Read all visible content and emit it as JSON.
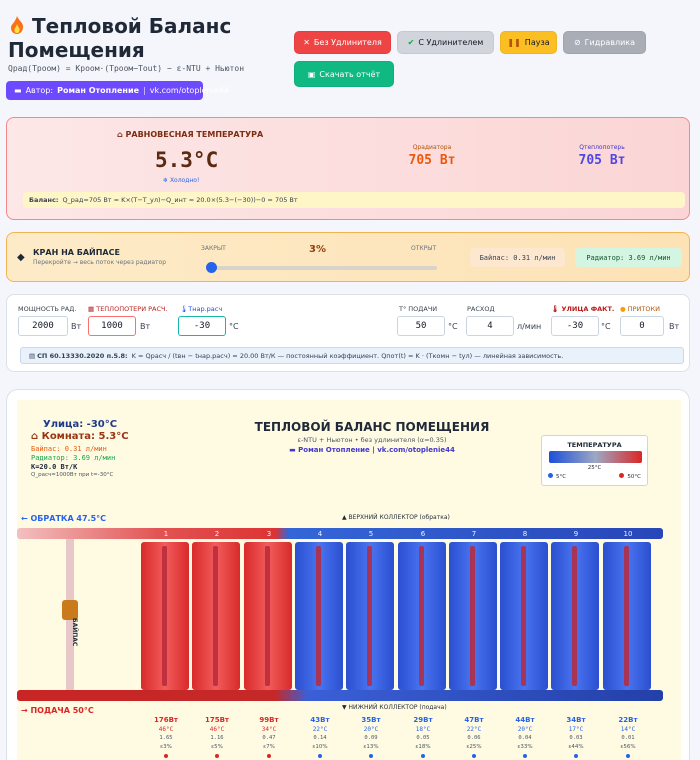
{
  "header": {
    "title": "Тепловой Баланс Помещения",
    "formula": "Qрад(Tроом) = Kроом·(Tроом−Tout) − ε-NTU + Ньютон",
    "author_label": "Автор:",
    "author_name": "Роман Отопление",
    "author_link": "vk.com/otoplenie44"
  },
  "toolbar": {
    "no_extension": "Без Удлинителя",
    "with_extension": "С Удлинителем",
    "pause": "Пауза",
    "hydraulics": "Гидравлика",
    "download_report": "Скачать отчёт"
  },
  "equilibrium": {
    "label": "РАВНОВЕСНАЯ ТЕМПЕРАТУРА",
    "temp": "5.3°C",
    "status": "Холодно!",
    "q_rad_label": "Qрадиатора",
    "q_rad_value": "705 Вт",
    "q_heatloss_label": "Qтеплопотерь",
    "q_heatloss_value": "705 Вт",
    "balance_bold": "Баланс:",
    "balance_text": "Q_рад=705 Вт = K×(T−T_ул)−Q_инт = 20.0×(5.3−(−30))−0 = 705 Вт"
  },
  "valve": {
    "title": "КРАН НА БАЙПАСЕ",
    "subtitle": "Перекройте → весь поток через радиатор",
    "closed": "ЗАКРЫТ",
    "open": "ОТКРЫТ",
    "percent": "3%",
    "percent_value": 3,
    "bypass_flow": "Байпас: 0.31 л/мин",
    "radiator_flow": "Радиатор: 3.69 л/мин"
  },
  "inputs": {
    "power_label": "МОЩНОСТЬ РАД.",
    "power_value": "2000",
    "power_unit": "Вт",
    "heatloss_label": "ТЕПЛОПОТЕРИ РАСЧ.",
    "heatloss_value": "1000",
    "heatloss_unit": "Вт",
    "t_design_label": "Tнар.расч",
    "t_design_value": "-30",
    "t_design_unit": "°C",
    "t_supply_label": "T° ПОДАЧИ",
    "t_supply_value": "50",
    "t_supply_unit": "°C",
    "flow_label": "РАСХОД",
    "flow_value": "4",
    "flow_unit": "л/мин",
    "street_fact_label": "УЛИЦА ФАКТ.",
    "street_fact_value": "-30",
    "street_fact_unit": "°C",
    "inflow_label": "ПРИТОКИ",
    "inflow_value": "0",
    "inflow_unit": "Вт",
    "note_bold": "СП 60.13330.2020 п.5.8:",
    "note_text": "K = Qрасч / (tвн − tнар.расч) = 20.00 Вт/К — постоянный коэффициент. Qпот(t) = K · (Tкомн − tул) — линейная зависимость."
  },
  "scheme": {
    "street": "Улица: -30°C",
    "room": "Комната: 5.3°C",
    "bypass": "Байпас: 0.31 л/мин",
    "radiator": "Радиатор: 3.69 л/мин",
    "k": "K=20.0 Вт/К",
    "calc": "Q_расч=1000Вт при t=-30°C",
    "title": "ТЕПЛОВОЙ БАЛАНС ПОМЕЩЕНИЯ",
    "subtitle": "ε-NTU + Ньютон • без удлинителя (α=0.35)",
    "author": "Роман Отопление | vk.com/otoplenie44",
    "legend_title": "ТЕМПЕРАТУРА",
    "legend_mid": "25°C",
    "legend_min": "5°C",
    "legend_max": "50°C",
    "return_label": "← ОБРАТКА 47.5°C",
    "supply_label": "→ ПОДАЧА 50°C",
    "top_collector": "▲ ВЕРХНИЙ КОЛЛЕКТОР (обратка)",
    "bottom_collector": "▼ НИЖНИЙ КОЛЛЕКТОР (подача)",
    "bypass_vertical": "БАЙПАС",
    "colors": {
      "hot": "#d92a2a",
      "cold": "#2a4fd0",
      "mid": "#9ca8c4"
    },
    "sections": [
      {
        "num": "1",
        "power": "176Вт",
        "temp": "46°C",
        "delta": "1.65",
        "eff": "ε3%",
        "hot": true
      },
      {
        "num": "2",
        "power": "175Вт",
        "temp": "46°C",
        "delta": "1.16",
        "eff": "ε5%",
        "hot": true
      },
      {
        "num": "3",
        "power": "99Вт",
        "temp": "34°C",
        "delta": "0.47",
        "eff": "ε7%",
        "hot": true
      },
      {
        "num": "4",
        "power": "43Вт",
        "temp": "22°C",
        "delta": "0.14",
        "eff": "ε10%",
        "hot": false
      },
      {
        "num": "5",
        "power": "35Вт",
        "temp": "20°C",
        "delta": "0.09",
        "eff": "ε13%",
        "hot": false
      },
      {
        "num": "6",
        "power": "29Вт",
        "temp": "18°C",
        "delta": "0.05",
        "eff": "ε18%",
        "hot": false
      },
      {
        "num": "7",
        "power": "47Вт",
        "temp": "22°C",
        "delta": "0.06",
        "eff": "ε25%",
        "hot": false
      },
      {
        "num": "8",
        "power": "44Вт",
        "temp": "20°C",
        "delta": "0.04",
        "eff": "ε33%",
        "hot": false
      },
      {
        "num": "9",
        "power": "34Вт",
        "temp": "17°C",
        "delta": "0.03",
        "eff": "ε44%",
        "hot": false
      },
      {
        "num": "10",
        "power": "22Вт",
        "temp": "14°C",
        "delta": "0.01",
        "eff": "ε56%",
        "hot": false
      }
    ]
  }
}
